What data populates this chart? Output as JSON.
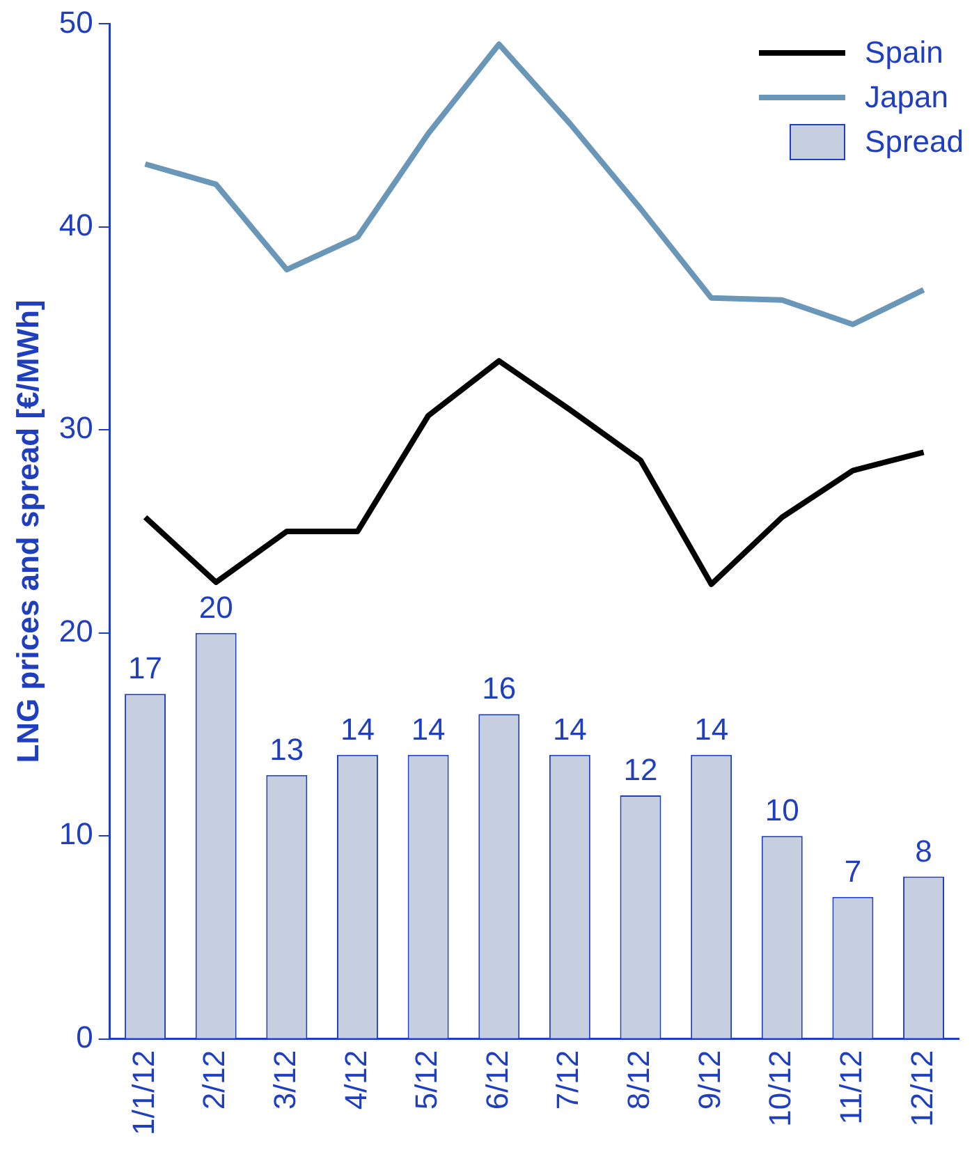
{
  "chart_data": {
    "type": "bar",
    "ylabel": "LNG prices and spread [€/MWh]",
    "categories": [
      "1/1/12",
      "2/12",
      "3/12",
      "4/12",
      "5/12",
      "6/12",
      "7/12",
      "8/12",
      "9/12",
      "10/12",
      "11/12",
      "12/12"
    ],
    "series": [
      {
        "name": "Spain",
        "type": "line",
        "color": "#000000",
        "values": [
          25.7,
          22.5,
          25.0,
          25.0,
          30.7,
          33.4,
          31.0,
          28.5,
          22.4,
          25.7,
          28.0,
          28.9
        ]
      },
      {
        "name": "Japan",
        "type": "line",
        "color": "#6a96b8",
        "values": [
          43.1,
          42.1,
          37.9,
          39.5,
          44.6,
          49.0,
          45.1,
          40.9,
          36.5,
          36.4,
          35.2,
          36.9
        ]
      },
      {
        "name": "Spread",
        "type": "bar",
        "color": "#c5cfe0",
        "values": [
          17,
          20,
          13,
          14,
          14,
          16,
          14,
          12,
          14,
          10,
          7,
          8
        ],
        "value_labels": [
          "17",
          "20",
          "13",
          "14",
          "14",
          "16",
          "14",
          "12",
          "14",
          "10",
          "7",
          "8"
        ]
      }
    ],
    "ylim": [
      0,
      50
    ],
    "yticks": [
      0,
      10,
      20,
      30,
      40,
      50
    ],
    "grid": false,
    "legend": "top right",
    "marker": "none",
    "line_style": "solid"
  }
}
